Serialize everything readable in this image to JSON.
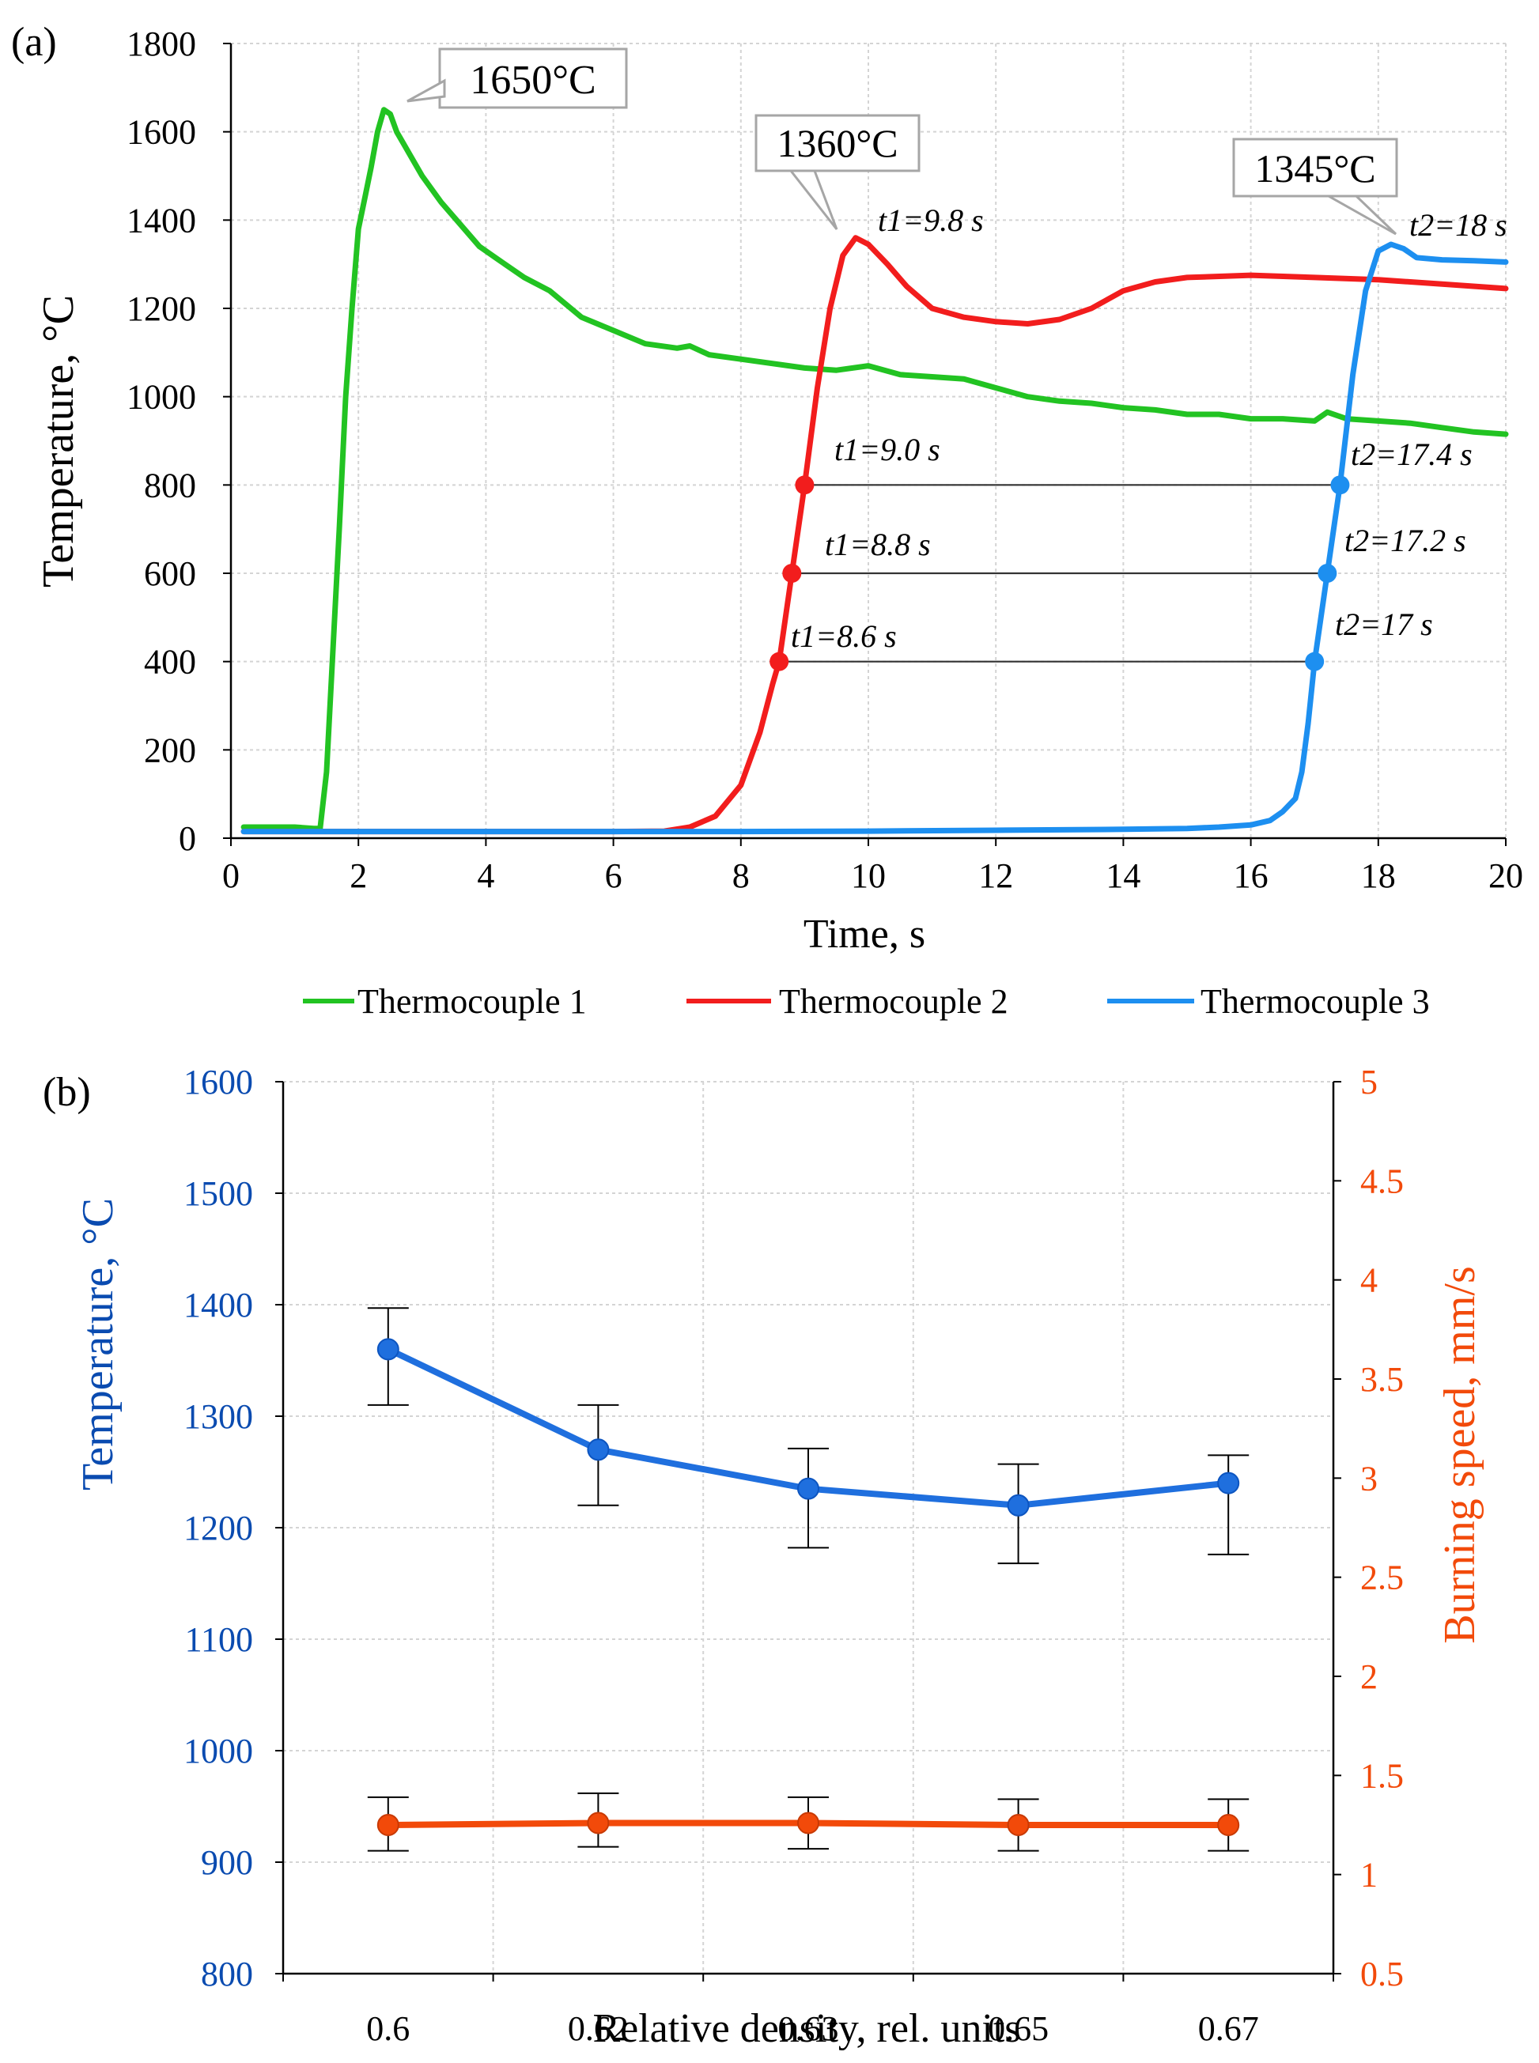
{
  "chart_data": [
    {
      "panel_label": "(a)",
      "type": "line",
      "xlabel": "Time, s",
      "ylabel": "Temperature, °C",
      "xlim": [
        0,
        20
      ],
      "ylim": [
        0,
        1800
      ],
      "xticks": [
        0,
        2,
        4,
        6,
        8,
        10,
        12,
        14,
        16,
        18,
        20
      ],
      "yticks": [
        0,
        200,
        400,
        600,
        800,
        1000,
        1200,
        1400,
        1600,
        1800
      ],
      "grid": true,
      "legend_position": "bottom",
      "series": [
        {
          "name": "Thermocouple 1",
          "color": "#22c322",
          "x": [
            0.2,
            0.6,
            1.0,
            1.3,
            1.4,
            1.5,
            1.7,
            1.8,
            1.9,
            2.0,
            2.1,
            2.2,
            2.3,
            2.4,
            2.5,
            2.6,
            2.8,
            3.0,
            3.3,
            3.6,
            3.9,
            4.2,
            4.6,
            5.0,
            5.5,
            6.0,
            6.5,
            7.0,
            7.2,
            7.5,
            8.0,
            9.0,
            9.5,
            10.0,
            10.5,
            11.0,
            11.5,
            12.0,
            12.5,
            13.0,
            13.5,
            14.0,
            14.5,
            15.0,
            15.5,
            16.0,
            16.5,
            17.0,
            17.2,
            17.5,
            18.0,
            18.5,
            19.0,
            19.5,
            20.0
          ],
          "y": [
            25,
            25,
            25,
            22,
            22,
            150,
            700,
            1000,
            1200,
            1380,
            1450,
            1520,
            1600,
            1650,
            1640,
            1600,
            1550,
            1500,
            1440,
            1390,
            1340,
            1310,
            1270,
            1240,
            1180,
            1150,
            1120,
            1110,
            1115,
            1095,
            1085,
            1065,
            1060,
            1070,
            1050,
            1045,
            1040,
            1020,
            1000,
            990,
            985,
            975,
            970,
            960,
            960,
            950,
            950,
            945,
            965,
            950,
            945,
            940,
            930,
            920,
            915
          ]
        },
        {
          "name": "Thermocouple 2",
          "color": "#f21d1d",
          "x": [
            0.2,
            2,
            4,
            6,
            6.8,
            7.2,
            7.6,
            8.0,
            8.3,
            8.5,
            8.6,
            8.8,
            9.0,
            9.2,
            9.4,
            9.6,
            9.8,
            10.0,
            10.3,
            10.6,
            11.0,
            11.5,
            12.0,
            12.5,
            13.0,
            13.5,
            14.0,
            14.5,
            15.0,
            16.0,
            17.0,
            18.0,
            19.0,
            20.0
          ],
          "y": [
            15,
            15,
            15,
            15,
            16,
            25,
            50,
            120,
            240,
            350,
            400,
            600,
            800,
            1020,
            1200,
            1320,
            1360,
            1345,
            1300,
            1250,
            1200,
            1180,
            1170,
            1165,
            1175,
            1200,
            1240,
            1260,
            1270,
            1275,
            1270,
            1265,
            1255,
            1245
          ]
        },
        {
          "name": "Thermocouple 3",
          "color": "#1d8ff0",
          "x": [
            0.2,
            2,
            4,
            6,
            8,
            10,
            12,
            14,
            15.0,
            15.5,
            16.0,
            16.3,
            16.5,
            16.7,
            16.8,
            16.9,
            17.0,
            17.2,
            17.4,
            17.6,
            17.8,
            18.0,
            18.2,
            18.4,
            18.6,
            19.0,
            19.5,
            20.0
          ],
          "y": [
            15,
            15,
            15,
            15,
            15,
            16,
            18,
            20,
            22,
            25,
            30,
            40,
            60,
            90,
            150,
            260,
            400,
            600,
            800,
            1050,
            1240,
            1330,
            1345,
            1335,
            1315,
            1310,
            1308,
            1305
          ]
        }
      ],
      "peak_callouts": [
        "1650°C",
        "1360°C",
        "1345°C"
      ],
      "time_marks": {
        "t1_labels": [
          "t1=9.8 s",
          "t1=9.0 s",
          "t1=8.8 s",
          "t1=8.6 s"
        ],
        "t2_labels": [
          "t2=18 s",
          "t2=17.4 s",
          "t2=17.2 s",
          "t2=17 s"
        ],
        "levels": [
          800,
          600,
          400
        ],
        "t1_values": [
          9.0,
          8.8,
          8.6
        ],
        "t2_values": [
          17.4,
          17.2,
          17.0
        ]
      }
    },
    {
      "panel_label": "(b)",
      "type": "line",
      "xlabel": "Relative density, rel. units",
      "ylabel": "Temperature, °C",
      "y2label": "Burning speed, mm/s",
      "categories": [
        "0.6",
        "0.62",
        "0.63",
        "0.65",
        "0.67"
      ],
      "ylim": [
        800,
        1600
      ],
      "y2lim": [
        0.5,
        5
      ],
      "yticks": [
        800,
        900,
        1000,
        1100,
        1200,
        1300,
        1400,
        1500,
        1600
      ],
      "y2ticks": [
        "0.5",
        "1",
        "1.5",
        "2",
        "2.5",
        "3",
        "3.5",
        "4",
        "4.5",
        "5"
      ],
      "grid": true,
      "series": [
        {
          "name": "Temperature",
          "axis": "left",
          "color": "#1f6fde",
          "values": [
            1360,
            1270,
            1235,
            1220,
            1240
          ],
          "error_low": [
            1310,
            1220,
            1182,
            1168,
            1176
          ],
          "error_high": [
            1397,
            1310,
            1271,
            1257,
            1265
          ]
        },
        {
          "name": "Burning speed",
          "axis": "right",
          "color": "#f24a0a",
          "values": [
            1.25,
            1.26,
            1.26,
            1.25,
            1.25
          ],
          "error_low": [
            1.12,
            1.14,
            1.13,
            1.12,
            1.12
          ],
          "error_high": [
            1.39,
            1.41,
            1.39,
            1.38,
            1.38
          ]
        }
      ]
    }
  ]
}
